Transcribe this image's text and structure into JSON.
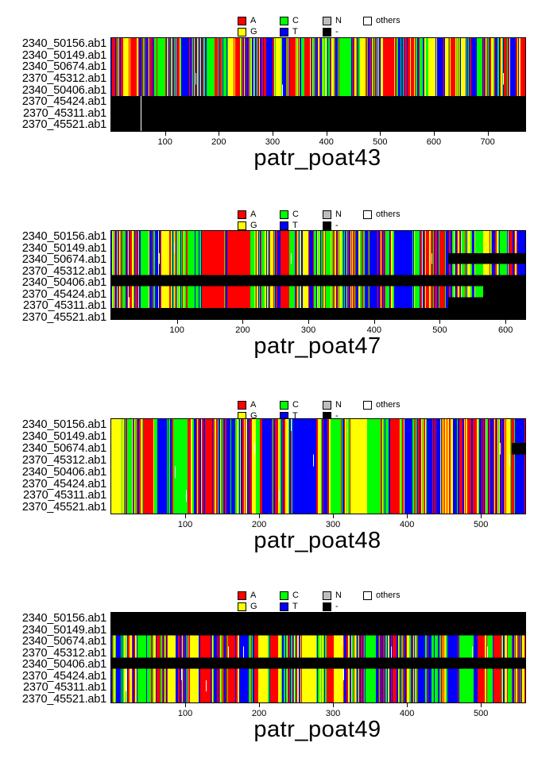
{
  "chart_data": {
    "type": "heatmap",
    "subtype": "dna-sequence-alignment-image",
    "row_labels": [
      "2340_50156.ab1",
      "2340_50149.ab1",
      "2340_50674.ab1",
      "2370_45312.ab1",
      "2340_50406.ab1",
      "2370_45424.ab1",
      "2370_45311.ab1",
      "2370_45521.ab1"
    ],
    "legend": [
      {
        "label": "A",
        "color": "#FF0000"
      },
      {
        "label": "G",
        "color": "#FFFF00"
      },
      {
        "label": "C",
        "color": "#00FF00"
      },
      {
        "label": "T",
        "color": "#0000FF"
      },
      {
        "label": "N",
        "color": "#BEBEBE"
      },
      {
        "label": "-",
        "color": "#000000"
      },
      {
        "label": "others",
        "color": "#FFFFFF"
      }
    ],
    "panels": [
      {
        "title": "patr_poat43",
        "length": 770,
        "xticks": [
          100,
          200,
          300,
          400,
          500,
          600,
          700
        ],
        "rows": [
          {
            "segments": [
              {
                "state": "base",
                "from": 1,
                "to": 770
              }
            ]
          },
          {
            "segments": [
              {
                "state": "base",
                "from": 1,
                "to": 770
              }
            ]
          },
          {
            "segments": [
              {
                "state": "base",
                "from": 1,
                "to": 770
              }
            ]
          },
          {
            "segments": [
              {
                "state": "base",
                "from": 1,
                "to": 770
              }
            ]
          },
          {
            "segments": [
              {
                "state": "base",
                "from": 1,
                "to": 770
              }
            ]
          },
          {
            "segments": [
              {
                "state": "gap",
                "from": 1,
                "to": 770
              }
            ]
          },
          {
            "segments": [
              {
                "state": "gap",
                "from": 1,
                "to": 770
              }
            ]
          },
          {
            "segments": [
              {
                "state": "gap",
                "from": 1,
                "to": 770
              }
            ]
          }
        ],
        "features": [
          {
            "type": "others-column",
            "x": 56,
            "rows": [
              6,
              7,
              8
            ]
          },
          {
            "type": "others-column",
            "x": 730,
            "rows": [
              4
            ]
          }
        ]
      },
      {
        "title": "patr_poat47",
        "length": 630,
        "xticks": [
          100,
          200,
          300,
          400,
          500,
          600
        ],
        "rows": [
          {
            "segments": [
              {
                "state": "base",
                "from": 1,
                "to": 630
              }
            ]
          },
          {
            "segments": [
              {
                "state": "base",
                "from": 1,
                "to": 630
              }
            ]
          },
          {
            "segments": [
              {
                "state": "base",
                "from": 1,
                "to": 513
              },
              {
                "state": "gap",
                "from": 514,
                "to": 630
              }
            ]
          },
          {
            "segments": [
              {
                "state": "base",
                "from": 1,
                "to": 630
              }
            ]
          },
          {
            "segments": [
              {
                "state": "gap",
                "from": 1,
                "to": 630
              }
            ]
          },
          {
            "segments": [
              {
                "state": "base",
                "from": 1,
                "to": 567
              },
              {
                "state": "gap",
                "from": 568,
                "to": 630
              }
            ]
          },
          {
            "segments": [
              {
                "state": "base",
                "from": 1,
                "to": 513
              },
              {
                "state": "gap",
                "from": 514,
                "to": 630
              }
            ]
          },
          {
            "segments": [
              {
                "state": "gap",
                "from": 1,
                "to": 630
              }
            ]
          }
        ],
        "features": []
      },
      {
        "title": "patr_poat48",
        "length": 560,
        "xticks": [
          100,
          200,
          300,
          400,
          500
        ],
        "rows": [
          {
            "segments": [
              {
                "state": "base",
                "from": 1,
                "to": 560
              }
            ]
          },
          {
            "segments": [
              {
                "state": "base",
                "from": 1,
                "to": 560
              }
            ]
          },
          {
            "segments": [
              {
                "state": "base",
                "from": 1,
                "to": 542
              },
              {
                "state": "gap",
                "from": 543,
                "to": 560
              }
            ]
          },
          {
            "segments": [
              {
                "state": "base",
                "from": 1,
                "to": 560
              }
            ]
          },
          {
            "segments": [
              {
                "state": "base",
                "from": 1,
                "to": 560
              }
            ]
          },
          {
            "segments": [
              {
                "state": "base",
                "from": 1,
                "to": 560
              }
            ]
          },
          {
            "segments": [
              {
                "state": "base",
                "from": 1,
                "to": 560
              }
            ]
          },
          {
            "segments": [
              {
                "state": "base",
                "from": 1,
                "to": 560
              }
            ]
          }
        ],
        "features": []
      },
      {
        "title": "patr_poat49",
        "length": 560,
        "xticks": [
          100,
          200,
          300,
          400,
          500
        ],
        "rows": [
          {
            "segments": [
              {
                "state": "gap",
                "from": 1,
                "to": 560
              }
            ]
          },
          {
            "segments": [
              {
                "state": "gap",
                "from": 1,
                "to": 560
              }
            ]
          },
          {
            "segments": [
              {
                "state": "base",
                "from": 1,
                "to": 560
              }
            ]
          },
          {
            "segments": [
              {
                "state": "base",
                "from": 1,
                "to": 560
              }
            ]
          },
          {
            "segments": [
              {
                "state": "gap",
                "from": 1,
                "to": 560
              }
            ]
          },
          {
            "segments": [
              {
                "state": "base",
                "from": 1,
                "to": 560
              }
            ]
          },
          {
            "segments": [
              {
                "state": "base",
                "from": 1,
                "to": 560
              }
            ]
          },
          {
            "segments": [
              {
                "state": "base",
                "from": 1,
                "to": 560
              }
            ]
          }
        ],
        "features": [
          {
            "type": "others-column",
            "x": 20,
            "rows": [
              6,
              7
            ]
          }
        ]
      }
    ]
  }
}
